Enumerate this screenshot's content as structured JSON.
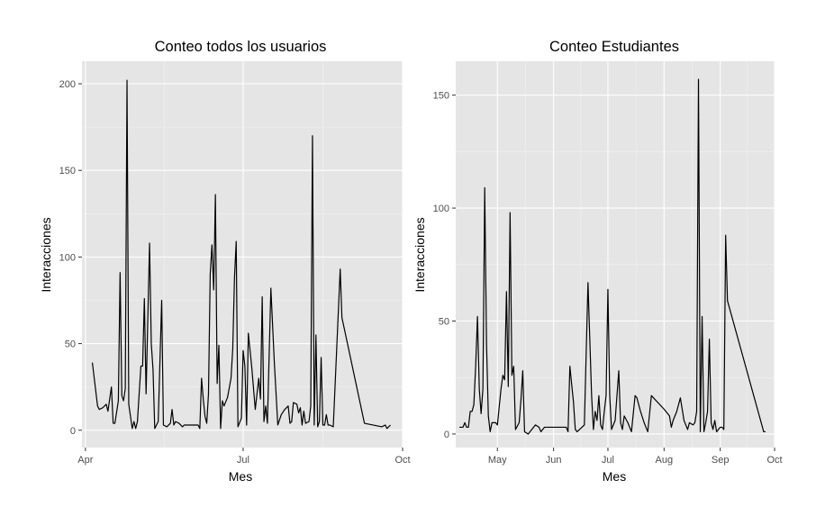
{
  "chart_data": [
    {
      "type": "line",
      "title": "Conteo todos los usuarios",
      "xlabel": "Mes",
      "ylabel": "Interacciones",
      "x_ticks": [
        {
          "date": "2023-04-01",
          "label": "Apr"
        },
        {
          "date": "2023-07-01",
          "label": "Jul"
        },
        {
          "date": "2023-10-01",
          "label": "Oct"
        }
      ],
      "y_ticks": [
        0,
        50,
        100,
        150,
        200
      ],
      "xlim": [
        "2023-03-30",
        "2023-10-01"
      ],
      "ylim": [
        -10,
        213
      ],
      "grid": true,
      "series": [
        {
          "values": [
            [
              "2023-04-05",
              39
            ],
            [
              "2023-04-08",
              14
            ],
            [
              "2023-04-09",
              12
            ],
            [
              "2023-04-11",
              13
            ],
            [
              "2023-04-13",
              15
            ],
            [
              "2023-04-14",
              11
            ],
            [
              "2023-04-16",
              25
            ],
            [
              "2023-04-17",
              4
            ],
            [
              "2023-04-18",
              4
            ],
            [
              "2023-04-20",
              17
            ],
            [
              "2023-04-21",
              91
            ],
            [
              "2023-04-22",
              20
            ],
            [
              "2023-04-23",
              17
            ],
            [
              "2023-04-24",
              24
            ],
            [
              "2023-04-25",
              202
            ],
            [
              "2023-04-26",
              15
            ],
            [
              "2023-04-28",
              1
            ],
            [
              "2023-04-29",
              5
            ],
            [
              "2023-04-30",
              1
            ],
            [
              "2023-05-01",
              5
            ],
            [
              "2023-05-03",
              37
            ],
            [
              "2023-05-04",
              37
            ],
            [
              "2023-05-05",
              76
            ],
            [
              "2023-05-06",
              21
            ],
            [
              "2023-05-08",
              108
            ],
            [
              "2023-05-09",
              50
            ],
            [
              "2023-05-10",
              35
            ],
            [
              "2023-05-11",
              1
            ],
            [
              "2023-05-13",
              5
            ],
            [
              "2023-05-15",
              75
            ],
            [
              "2023-05-16",
              3
            ],
            [
              "2023-05-18",
              2
            ],
            [
              "2023-05-20",
              4
            ],
            [
              "2023-05-21",
              12
            ],
            [
              "2023-05-22",
              3
            ],
            [
              "2023-05-23",
              5
            ],
            [
              "2023-05-25",
              4
            ],
            [
              "2023-05-27",
              2
            ],
            [
              "2023-05-28",
              3
            ],
            [
              "2023-06-05",
              3
            ],
            [
              "2023-06-06",
              1
            ],
            [
              "2023-06-07",
              30
            ],
            [
              "2023-06-08",
              18
            ],
            [
              "2023-06-09",
              8
            ],
            [
              "2023-06-10",
              4
            ],
            [
              "2023-06-11",
              21
            ],
            [
              "2023-06-12",
              90
            ],
            [
              "2023-06-13",
              107
            ],
            [
              "2023-06-14",
              81
            ],
            [
              "2023-06-15",
              136
            ],
            [
              "2023-06-16",
              27
            ],
            [
              "2023-06-17",
              49
            ],
            [
              "2023-06-18",
              1
            ],
            [
              "2023-06-19",
              17
            ],
            [
              "2023-06-20",
              14
            ],
            [
              "2023-06-22",
              19
            ],
            [
              "2023-06-24",
              30
            ],
            [
              "2023-06-25",
              47
            ],
            [
              "2023-06-26",
              88
            ],
            [
              "2023-06-27",
              109
            ],
            [
              "2023-06-28",
              2
            ],
            [
              "2023-06-30",
              7
            ],
            [
              "2023-07-01",
              46
            ],
            [
              "2023-07-02",
              37
            ],
            [
              "2023-07-03",
              3
            ],
            [
              "2023-07-04",
              56
            ],
            [
              "2023-07-06",
              36
            ],
            [
              "2023-07-08",
              12
            ],
            [
              "2023-07-10",
              30
            ],
            [
              "2023-07-11",
              18
            ],
            [
              "2023-07-12",
              77
            ],
            [
              "2023-07-13",
              5
            ],
            [
              "2023-07-14",
              14
            ],
            [
              "2023-07-15",
              4
            ],
            [
              "2023-07-17",
              82
            ],
            [
              "2023-07-19",
              39
            ],
            [
              "2023-07-21",
              3
            ],
            [
              "2023-07-23",
              9
            ],
            [
              "2023-07-25",
              12
            ],
            [
              "2023-07-27",
              14
            ],
            [
              "2023-07-28",
              4
            ],
            [
              "2023-07-29",
              5
            ],
            [
              "2023-07-30",
              16
            ],
            [
              "2023-08-01",
              15
            ],
            [
              "2023-08-02",
              10
            ],
            [
              "2023-08-03",
              13
            ],
            [
              "2023-08-04",
              3
            ],
            [
              "2023-08-05",
              11
            ],
            [
              "2023-08-06",
              4
            ],
            [
              "2023-08-08",
              5
            ],
            [
              "2023-08-09",
              14
            ],
            [
              "2023-08-10",
              170
            ],
            [
              "2023-08-11",
              3
            ],
            [
              "2023-08-12",
              55
            ],
            [
              "2023-08-13",
              2
            ],
            [
              "2023-08-14",
              5
            ],
            [
              "2023-08-15",
              42
            ],
            [
              "2023-08-16",
              3
            ],
            [
              "2023-08-17",
              3
            ],
            [
              "2023-08-18",
              9
            ],
            [
              "2023-08-19",
              3
            ],
            [
              "2023-08-20",
              3
            ],
            [
              "2023-08-22",
              2
            ],
            [
              "2023-08-26",
              93
            ],
            [
              "2023-08-27",
              65
            ],
            [
              "2023-09-09",
              4
            ],
            [
              "2023-09-19",
              2
            ],
            [
              "2023-09-21",
              3
            ],
            [
              "2023-09-22",
              1
            ],
            [
              "2023-09-24",
              3
            ]
          ]
        }
      ]
    },
    {
      "type": "line",
      "title": "Conteo Estudiantes",
      "xlabel": "Mes",
      "ylabel": "Interacciones",
      "x_ticks": [
        {
          "date": "2023-05-01",
          "label": "May"
        },
        {
          "date": "2023-06-01",
          "label": "Jun"
        },
        {
          "date": "2023-07-01",
          "label": "Jul"
        },
        {
          "date": "2023-08-01",
          "label": "Aug"
        },
        {
          "date": "2023-09-01",
          "label": "Sep"
        },
        {
          "date": "2023-10-01",
          "label": "Oct"
        }
      ],
      "y_ticks": [
        0,
        50,
        100,
        150
      ],
      "xlim": [
        "2023-04-08",
        "2023-10-01"
      ],
      "ylim": [
        -6,
        165
      ],
      "grid": true,
      "series": [
        {
          "values": [
            [
              "2023-04-10",
              3
            ],
            [
              "2023-04-12",
              3
            ],
            [
              "2023-04-13",
              5
            ],
            [
              "2023-04-14",
              3
            ],
            [
              "2023-04-15",
              3
            ],
            [
              "2023-04-16",
              10
            ],
            [
              "2023-04-17",
              10
            ],
            [
              "2023-04-18",
              13
            ],
            [
              "2023-04-19",
              30
            ],
            [
              "2023-04-20",
              52
            ],
            [
              "2023-04-21",
              20
            ],
            [
              "2023-04-22",
              9
            ],
            [
              "2023-04-23",
              20
            ],
            [
              "2023-04-24",
              109
            ],
            [
              "2023-04-25",
              40
            ],
            [
              "2023-04-26",
              8
            ],
            [
              "2023-04-27",
              1
            ],
            [
              "2023-04-28",
              5
            ],
            [
              "2023-04-30",
              5
            ],
            [
              "2023-05-01",
              4
            ],
            [
              "2023-05-03",
              20
            ],
            [
              "2023-05-04",
              26
            ],
            [
              "2023-05-05",
              24
            ],
            [
              "2023-05-06",
              63
            ],
            [
              "2023-05-07",
              21
            ],
            [
              "2023-05-08",
              98
            ],
            [
              "2023-05-09",
              26
            ],
            [
              "2023-05-10",
              30
            ],
            [
              "2023-05-11",
              2
            ],
            [
              "2023-05-13",
              5
            ],
            [
              "2023-05-14",
              15
            ],
            [
              "2023-05-15",
              28
            ],
            [
              "2023-05-16",
              1
            ],
            [
              "2023-05-18",
              0
            ],
            [
              "2023-05-20",
              2
            ],
            [
              "2023-05-22",
              4
            ],
            [
              "2023-05-24",
              3
            ],
            [
              "2023-05-25",
              1
            ],
            [
              "2023-05-27",
              3
            ],
            [
              "2023-06-02",
              3
            ],
            [
              "2023-06-08",
              3
            ],
            [
              "2023-06-09",
              1
            ],
            [
              "2023-06-10",
              30
            ],
            [
              "2023-06-12",
              14
            ],
            [
              "2023-06-13",
              2
            ],
            [
              "2023-06-14",
              1
            ],
            [
              "2023-06-18",
              4
            ],
            [
              "2023-06-20",
              67
            ],
            [
              "2023-06-22",
              17
            ],
            [
              "2023-06-23",
              2
            ],
            [
              "2023-06-24",
              10
            ],
            [
              "2023-06-25",
              6
            ],
            [
              "2023-06-26",
              17
            ],
            [
              "2023-06-27",
              4
            ],
            [
              "2023-06-28",
              2
            ],
            [
              "2023-06-29",
              10
            ],
            [
              "2023-06-30",
              17
            ],
            [
              "2023-07-01",
              64
            ],
            [
              "2023-07-02",
              17
            ],
            [
              "2023-07-03",
              2
            ],
            [
              "2023-07-05",
              6
            ],
            [
              "2023-07-07",
              28
            ],
            [
              "2023-07-08",
              5
            ],
            [
              "2023-07-09",
              2
            ],
            [
              "2023-07-10",
              8
            ],
            [
              "2023-07-12",
              5
            ],
            [
              "2023-07-14",
              1
            ],
            [
              "2023-07-16",
              17
            ],
            [
              "2023-07-17",
              16
            ],
            [
              "2023-07-19",
              10
            ],
            [
              "2023-07-21",
              5
            ],
            [
              "2023-07-23",
              1
            ],
            [
              "2023-07-25",
              17
            ],
            [
              "2023-08-01",
              11
            ],
            [
              "2023-08-04",
              8
            ],
            [
              "2023-08-05",
              3
            ],
            [
              "2023-08-06",
              6
            ],
            [
              "2023-08-08",
              10
            ],
            [
              "2023-08-10",
              16
            ],
            [
              "2023-08-12",
              6
            ],
            [
              "2023-08-14",
              2
            ],
            [
              "2023-08-15",
              5
            ],
            [
              "2023-08-17",
              4
            ],
            [
              "2023-08-18",
              5
            ],
            [
              "2023-08-19",
              10
            ],
            [
              "2023-08-20",
              157
            ],
            [
              "2023-08-21",
              1
            ],
            [
              "2023-08-22",
              52
            ],
            [
              "2023-08-23",
              1
            ],
            [
              "2023-08-24",
              5
            ],
            [
              "2023-08-25",
              10
            ],
            [
              "2023-08-26",
              42
            ],
            [
              "2023-08-27",
              5
            ],
            [
              "2023-08-28",
              2
            ],
            [
              "2023-08-29",
              6
            ],
            [
              "2023-08-30",
              1
            ],
            [
              "2023-09-01",
              3
            ],
            [
              "2023-09-02",
              3
            ],
            [
              "2023-09-03",
              2
            ],
            [
              "2023-09-04",
              88
            ],
            [
              "2023-09-05",
              59
            ],
            [
              "2023-09-25",
              1
            ],
            [
              "2023-09-26",
              1
            ]
          ]
        }
      ]
    }
  ]
}
